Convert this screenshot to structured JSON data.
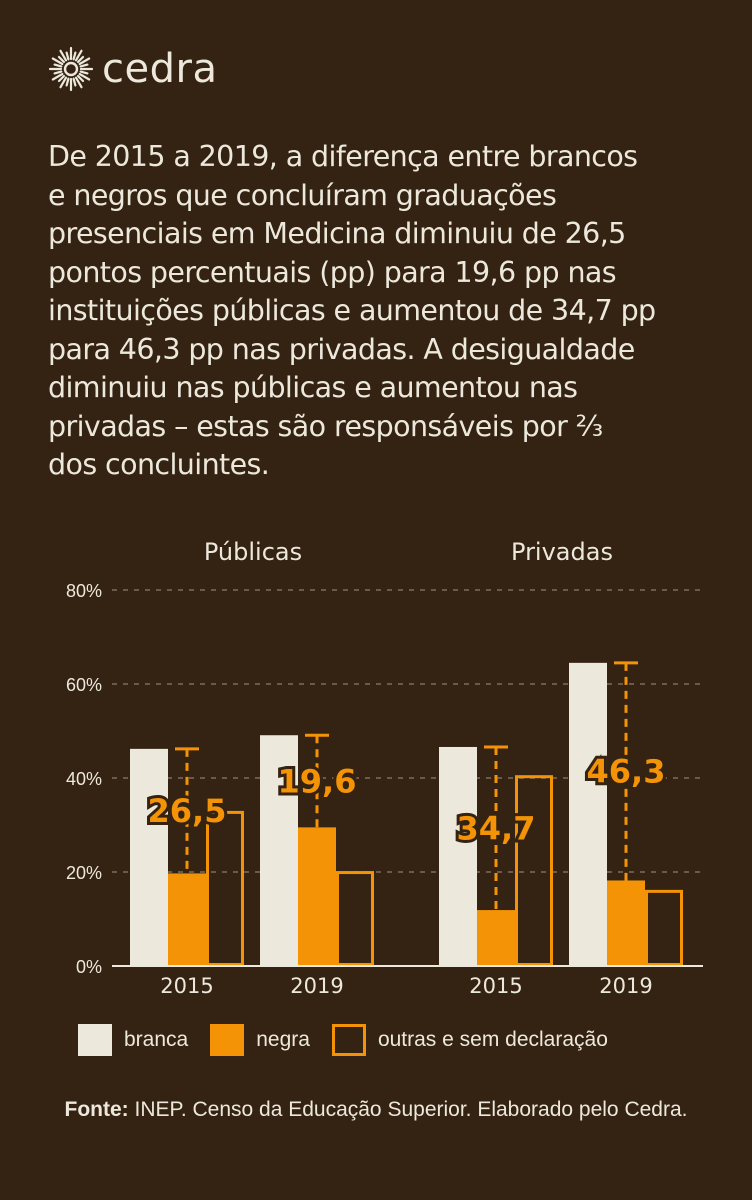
{
  "brand": {
    "name": "cedra",
    "icon": "sun-burst-icon"
  },
  "intro_lines": [
    "De 2015 a 2019, a diferença entre brancos",
    "e negros que concluíram graduações",
    "presenciais em Medicina diminuiu de 26,5",
    "pontos percentuais (pp) para 19,6 pp nas",
    "instituições públicas e aumentou de 34,7 pp",
    "para 46,3 pp nas privadas. A desigualdade",
    "diminuiu nas públicas e aumentou nas",
    "privadas – estas são responsáveis por ⅔",
    "dos concluintes."
  ],
  "colors": {
    "background": "#342212",
    "branca": "#ece9dc",
    "negra": "#f39305",
    "outras": "#f39305",
    "grid": "#6b5a48",
    "text": "#ece9dc"
  },
  "chart_data": {
    "type": "bar",
    "title": "",
    "xlabel": "",
    "ylabel": "",
    "ylim": [
      0,
      80
    ],
    "yticks": [
      0,
      20,
      40,
      60,
      80
    ],
    "ytick_labels": [
      "0%",
      "20%",
      "40%",
      "60%",
      "80%"
    ],
    "grid": true,
    "groups": [
      {
        "name": "Públicas",
        "categories": [
          "2015",
          "2019"
        ],
        "series": [
          {
            "name": "branca",
            "values": [
              46.2,
              49.1
            ]
          },
          {
            "name": "negra",
            "values": [
              19.7,
              29.5
            ]
          },
          {
            "name": "outras e sem declaração",
            "values": [
              33.0,
              20.2
            ]
          }
        ],
        "gap_labels": [
          "26,5",
          "19,6"
        ]
      },
      {
        "name": "Privadas",
        "categories": [
          "2015",
          "2019"
        ],
        "series": [
          {
            "name": "branca",
            "values": [
              46.6,
              64.5
            ]
          },
          {
            "name": "negra",
            "values": [
              11.9,
              18.2
            ]
          },
          {
            "name": "outras e sem declaração",
            "values": [
              40.6,
              16.2
            ]
          }
        ],
        "gap_labels": [
          "34,7",
          "46,3"
        ]
      }
    ],
    "legend": [
      "branca",
      "negra",
      "outras e sem declaração"
    ],
    "legend_position": "bottom"
  },
  "source": {
    "label": "Fonte:",
    "text": " INEP. Censo da Educação Superior. Elaborado pelo Cedra."
  }
}
